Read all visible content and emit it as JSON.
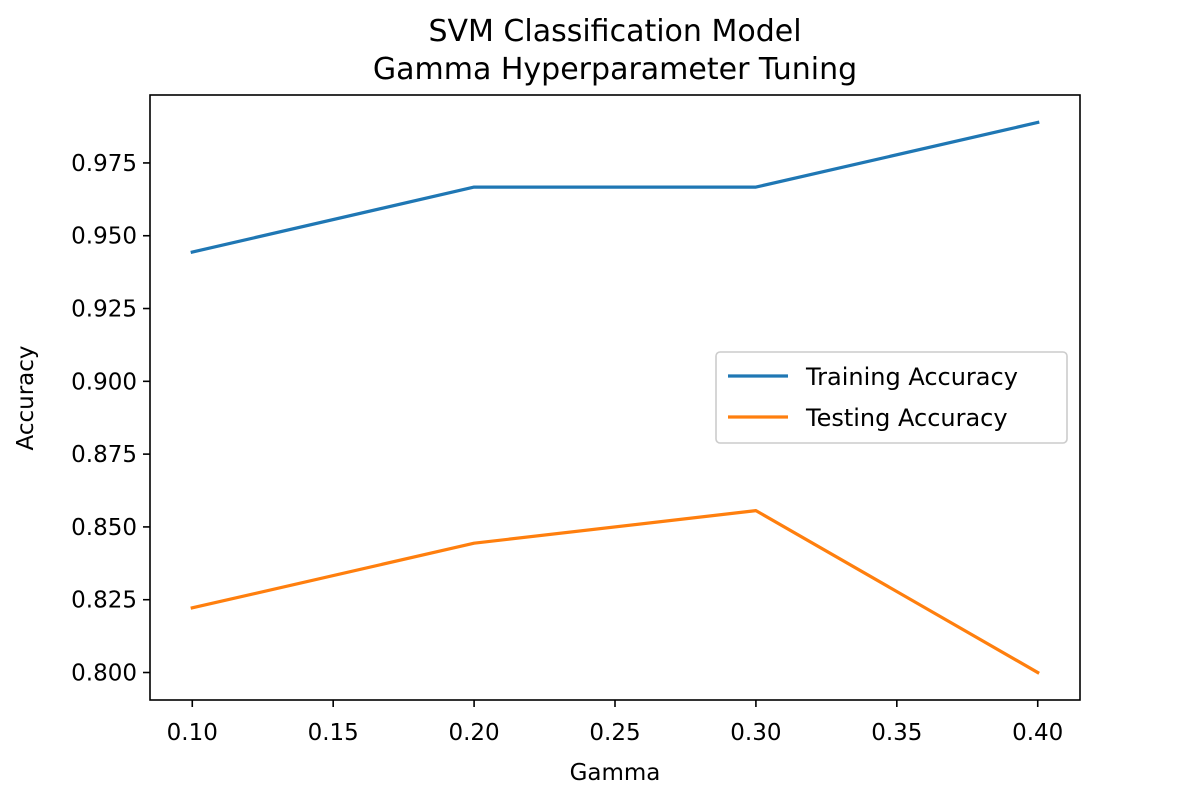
{
  "chart_data": {
    "type": "line",
    "title": "SVM Classification Model",
    "subtitle": "Gamma Hyperparameter Tuning",
    "xlabel": "Gamma",
    "ylabel": "Accuracy",
    "x": [
      0.1,
      0.2,
      0.3,
      0.4
    ],
    "xlim": [
      0.085,
      0.415
    ],
    "ylim": [
      0.79056,
      0.99833
    ],
    "xticks": [
      0.1,
      0.15,
      0.2,
      0.25,
      0.3,
      0.35,
      0.4
    ],
    "xtick_labels": [
      "0.10",
      "0.15",
      "0.20",
      "0.25",
      "0.30",
      "0.35",
      "0.40"
    ],
    "yticks": [
      0.8,
      0.825,
      0.85,
      0.875,
      0.9,
      0.925,
      0.95,
      0.975
    ],
    "ytick_labels": [
      "0.800",
      "0.825",
      "0.850",
      "0.875",
      "0.900",
      "0.925",
      "0.950",
      "0.975"
    ],
    "grid": false,
    "legend_position": "center-right",
    "series": [
      {
        "name": "Training Accuracy",
        "values": [
          0.9444,
          0.9667,
          0.9667,
          0.9889
        ],
        "color": "#1f77b4"
      },
      {
        "name": "Testing Accuracy",
        "values": [
          0.8222,
          0.8444,
          0.8556,
          0.8
        ],
        "color": "#ff7f0e"
      }
    ]
  }
}
